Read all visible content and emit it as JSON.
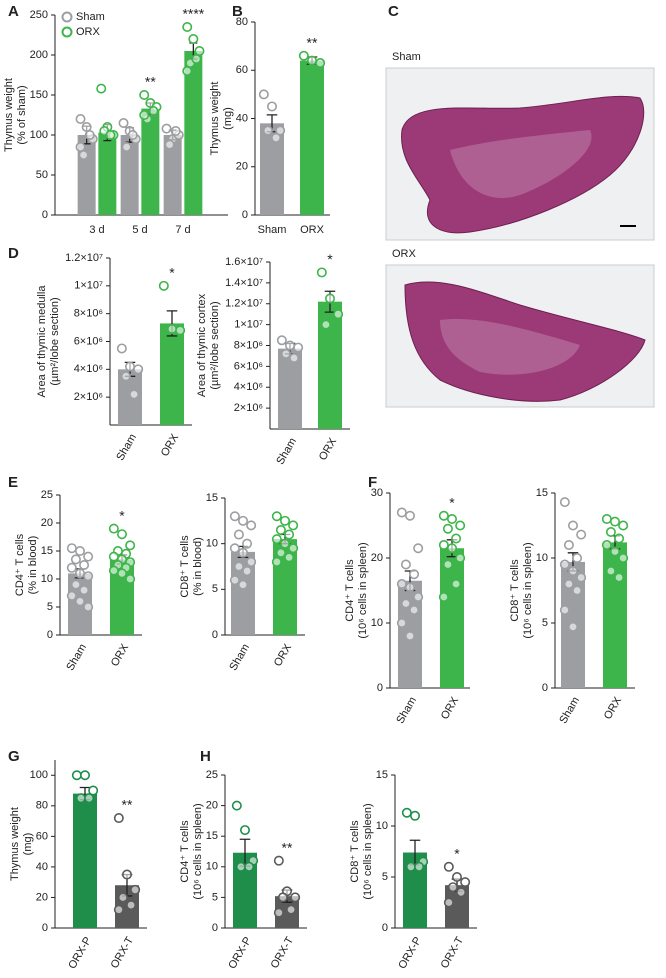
{
  "chart_data": [
    {
      "type": "bar",
      "panel": "A",
      "ylabel": [
        "Thymus weight",
        "(% of sham)"
      ],
      "categories": [
        "3 d",
        "5 d",
        "7 d"
      ],
      "series": [
        {
          "name": "Sham",
          "color": "#9c9ea1",
          "values": [
            100,
            100,
            100
          ],
          "errors": [
            11,
            9,
            6
          ],
          "points": [
            [
              120,
              110,
              95,
              75,
              100,
              85
            ],
            [
              115,
              105,
              95,
              85,
              100
            ],
            [
              108,
              95,
              100,
              88,
              105
            ]
          ],
          "significance": [
            null,
            null,
            null
          ]
        },
        {
          "name": "ORX",
          "color": "#3db54a",
          "values": [
            103,
            133,
            205
          ],
          "errors": [
            10,
            7,
            10
          ],
          "points": [
            [
              158,
              110,
              100,
              105,
              100
            ],
            [
              150,
              140,
              135,
              120,
              130,
              125
            ],
            [
              235,
              220,
              205,
              190,
              195,
              180
            ]
          ],
          "significance": [
            null,
            "**",
            "****"
          ]
        }
      ],
      "ylim": [
        0,
        250
      ],
      "yticks": [
        0,
        50,
        100,
        150,
        200,
        250
      ],
      "legend": "upper left"
    },
    {
      "type": "bar",
      "panel": "B",
      "ylabel": [
        "Thymus weight",
        "(mg)"
      ],
      "categories": [
        "Sham",
        "ORX"
      ],
      "series": [
        {
          "colors": [
            "#9c9ea1",
            "#3db54a"
          ],
          "values": [
            38,
            64
          ],
          "errors": [
            3.5,
            1.5
          ],
          "points": [
            [
              50,
              45,
              35,
              35,
              32
            ],
            [
              66,
              64,
              63
            ]
          ],
          "significance": [
            null,
            "**"
          ]
        }
      ],
      "ylim": [
        0,
        80
      ],
      "yticks": [
        0,
        20,
        40,
        60,
        80
      ]
    },
    {
      "type": "bar",
      "panel": "D",
      "ylabel": [
        "Area of thymic medulla",
        "(µm²/lobe section)"
      ],
      "categories": [
        "Sham",
        "ORX"
      ],
      "series": [
        {
          "colors": [
            "#9c9ea1",
            "#3db54a"
          ],
          "values": [
            4000000,
            7300000
          ],
          "errors": [
            500000,
            900000
          ],
          "points": [
            [
              5500000,
              4200000,
              4000000,
              3500000,
              2200000
            ],
            [
              10000000,
              6900000,
              6800000
            ]
          ],
          "significance": [
            null,
            "*"
          ]
        }
      ],
      "ylim": [
        0,
        12000000
      ],
      "yticks": [
        {
          "value": 2000000,
          "label": "2×10⁶"
        },
        {
          "value": 4000000,
          "label": "4×10⁶"
        },
        {
          "value": 6000000,
          "label": "6×10⁶"
        },
        {
          "value": 8000000,
          "label": "8×10⁶"
        },
        {
          "value": 10000000,
          "label": "1×10⁷"
        },
        {
          "value": 12000000,
          "label": "1.2×10⁷"
        }
      ]
    },
    {
      "type": "bar",
      "ylabel": [
        "Area of thymic cortex",
        "(µm²/lobe section)"
      ],
      "categories": [
        "Sham",
        "ORX"
      ],
      "series": [
        {
          "colors": [
            "#9c9ea1",
            "#3db54a"
          ],
          "values": [
            7700000,
            12200000
          ],
          "errors": [
            500000,
            1000000
          ],
          "points": [
            [
              8500000,
              8000000,
              7800000,
              7200000,
              6800000
            ],
            [
              15000000,
              12500000,
              11000000,
              10000000
            ]
          ],
          "significance": [
            null,
            "*"
          ]
        }
      ],
      "ylim": [
        0,
        16000000
      ],
      "yticks": [
        {
          "value": 2000000,
          "label": "2×10⁶"
        },
        {
          "value": 4000000,
          "label": "4×10⁶"
        },
        {
          "value": 6000000,
          "label": "6×10⁶"
        },
        {
          "value": 8000000,
          "label": "8×10⁶"
        },
        {
          "value": 10000000,
          "label": "1×10⁷"
        },
        {
          "value": 12000000,
          "label": "1.2×10⁷"
        },
        {
          "value": 14000000,
          "label": "1.4×10⁷"
        },
        {
          "value": 16000000,
          "label": "1.6×10⁷"
        }
      ]
    },
    {
      "type": "bar",
      "panel": "E",
      "ylabel": [
        "CD4⁺ T cells",
        "(% in blood)"
      ],
      "categories": [
        "Sham",
        "ORX"
      ],
      "series": [
        {
          "colors": [
            "#9c9ea1",
            "#3db54a"
          ],
          "values": [
            11,
            13.5
          ],
          "errors": [
            0.8,
            0.8
          ],
          "points": [
            [
              15.5,
              15,
              14,
              13.5,
              12.5,
              12,
              11,
              10.5,
              9,
              8,
              7,
              6,
              5
            ],
            [
              19,
              18,
              16,
              15,
              14.5,
              14,
              13.5,
              13,
              12.5,
              12,
              11.5,
              11,
              10
            ]
          ],
          "significance": [
            null,
            "*"
          ]
        }
      ],
      "ylim": [
        0,
        25
      ],
      "yticks": [
        0,
        5,
        10,
        15,
        20,
        25
      ]
    },
    {
      "type": "bar",
      "ylabel": [
        "CD8⁺ T cells",
        "(% in blood)"
      ],
      "categories": [
        "Sham",
        "ORX"
      ],
      "series": [
        {
          "colors": [
            "#9c9ea1",
            "#3db54a"
          ],
          "values": [
            9.1,
            10.5
          ],
          "errors": [
            0.6,
            0.5
          ],
          "points": [
            [
              13,
              12.5,
              12,
              11,
              10,
              9.5,
              9,
              8,
              7.5,
              7,
              6,
              5.5
            ],
            [
              13,
              12.5,
              12,
              11.5,
              11,
              10.5,
              10,
              9.5,
              9,
              8.5,
              8
            ]
          ],
          "significance": [
            null,
            null
          ]
        }
      ],
      "ylim": [
        0,
        15
      ],
      "yticks": [
        0,
        5,
        10,
        15
      ]
    },
    {
      "type": "bar",
      "panel": "F",
      "ylabel": [
        "CD4⁺ T cells",
        "(10⁶ cells in spleen)"
      ],
      "categories": [
        "Sham",
        "ORX"
      ],
      "series": [
        {
          "colors": [
            "#9c9ea1",
            "#3db54a"
          ],
          "values": [
            16.5,
            21.5
          ],
          "errors": [
            1.5,
            1.3
          ],
          "points": [
            [
              27,
              26.5,
              21.5,
              19,
              17.5,
              16,
              15.5,
              14,
              13,
              12,
              10,
              8
            ],
            [
              26.5,
              26,
              25,
              24.5,
              23,
              22,
              21.5,
              20,
              19,
              16,
              14
            ]
          ],
          "significance": [
            null,
            "*"
          ]
        }
      ],
      "ylim": [
        0,
        30
      ],
      "yticks": [
        0,
        10,
        20,
        30
      ]
    },
    {
      "type": "bar",
      "ylabel": [
        "CD8⁺ T cells",
        "(10⁶ cells in spleen)"
      ],
      "categories": [
        "Sham",
        "ORX"
      ],
      "series": [
        {
          "colors": [
            "#9c9ea1",
            "#3db54a"
          ],
          "values": [
            9.7,
            11.2
          ],
          "errors": [
            0.7,
            0.5
          ],
          "points": [
            [
              14.3,
              12.5,
              11.8,
              11,
              10,
              9.5,
              9,
              8.5,
              8,
              7.5,
              6,
              4.7
            ],
            [
              13,
              12.8,
              12.5,
              12,
              11.5,
              11,
              10.5,
              10,
              9,
              8.5
            ]
          ],
          "significance": [
            null,
            null
          ]
        }
      ],
      "ylim": [
        0,
        15
      ],
      "yticks": [
        0,
        5,
        10,
        15
      ]
    },
    {
      "type": "bar",
      "panel": "G",
      "ylabel": [
        "Thymus weight",
        "(mg)"
      ],
      "categories": [
        "ORX-P",
        "ORX-T"
      ],
      "series": [
        {
          "colors": [
            "#1e8e4a",
            "#5a5a5a"
          ],
          "values": [
            88,
            28
          ],
          "errors": [
            4,
            7
          ],
          "points": [
            [
              100,
              100,
              90,
              85,
              85
            ],
            [
              72,
              35,
              25,
              20,
              15,
              12
            ]
          ],
          "significance": [
            null,
            "**"
          ]
        }
      ],
      "ylim": [
        0,
        110
      ],
      "yticks": [
        0,
        20,
        40,
        60,
        80,
        100
      ]
    },
    {
      "type": "bar",
      "panel": "H",
      "ylabel": [
        "CD4⁺ T cells",
        "(10⁶ cells in spleen)"
      ],
      "categories": [
        "ORX-P",
        "ORX-T"
      ],
      "series": [
        {
          "colors": [
            "#1e8e4a",
            "#5a5a5a"
          ],
          "values": [
            12.3,
            5.2
          ],
          "errors": [
            2.2,
            1
          ],
          "points": [
            [
              20,
              16,
              11,
              10,
              10
            ],
            [
              11,
              6,
              5,
              5,
              3,
              2.5
            ]
          ],
          "significance": [
            null,
            "**"
          ]
        }
      ],
      "ylim": [
        0,
        25
      ],
      "yticks": [
        0,
        5,
        10,
        15,
        20,
        25
      ]
    },
    {
      "type": "bar",
      "ylabel": [
        "CD8⁺ T cells",
        "(10⁶ cells in spleen)"
      ],
      "categories": [
        "ORX-P",
        "ORX-T"
      ],
      "series": [
        {
          "colors": [
            "#1e8e4a",
            "#5a5a5a"
          ],
          "values": [
            7.4,
            4.2
          ],
          "errors": [
            1.2,
            0.6
          ],
          "points": [
            [
              11.3,
              11,
              6.5,
              6,
              6
            ],
            [
              6,
              5,
              4.5,
              4,
              3.5,
              2.5
            ]
          ],
          "significance": [
            null,
            "*"
          ]
        }
      ],
      "ylim": [
        0,
        15
      ],
      "yticks": [
        0,
        5,
        10,
        15
      ]
    }
  ],
  "images": {
    "panel": "C",
    "sections": [
      {
        "label": "Sham"
      },
      {
        "label": "ORX"
      }
    ]
  }
}
